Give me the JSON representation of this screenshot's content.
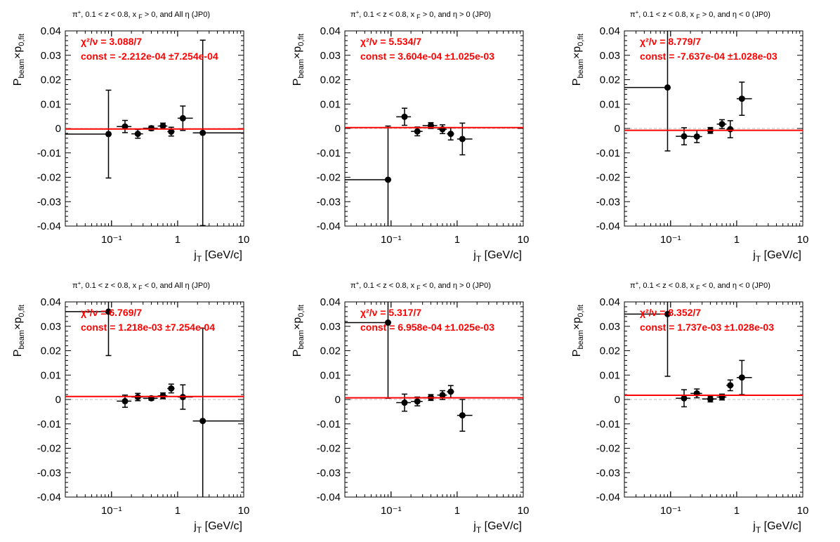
{
  "colors": {
    "fit_line": "#ff0000",
    "points": "#000000",
    "zero_line": "#bbbbbb"
  },
  "chart_data": [
    {
      "type": "scatter",
      "title": "π⁺, 0.1 < z < 0.8, x_F > 0, and All η (JP0)",
      "title_parts": {
        "a": "π",
        "a_sup": "+",
        "b": ", 0.1 < z < 0.8, x",
        "sub": "F",
        "c": " > 0, and All  η (JP0)"
      },
      "xlabel": "j_T [GeV/c]",
      "xlabel_main": "j",
      "xlabel_sub": "T",
      "xlabel_rest": " [GeV/c]",
      "ylabel": "P_beam × p_0,fit",
      "xscale": "log",
      "xlim": [
        0.02,
        10
      ],
      "ylim": [
        -0.04,
        0.04
      ],
      "xticks": [
        "10⁻¹",
        "1",
        "10"
      ],
      "yticks": [
        "-0.04",
        "-0.03",
        "-0.02",
        "-0.01",
        "0",
        "0.01",
        "0.02",
        "0.03",
        "0.04"
      ],
      "fit": {
        "const": -0.0002212
      },
      "chi2_label": "χ²/ν = 3.088/7",
      "const_label": "const = -2.212e-04  ±7.254e-04",
      "points": [
        {
          "x": 0.09,
          "xlo": 0.02,
          "xhi": 0.1,
          "y": -0.0023,
          "yerr": 0.018
        },
        {
          "x": 0.16,
          "xlo": 0.12,
          "xhi": 0.2,
          "y": 0.0008,
          "yerr": 0.0025
        },
        {
          "x": 0.25,
          "xlo": 0.2,
          "xhi": 0.3,
          "y": -0.0022,
          "yerr": 0.0018
        },
        {
          "x": 0.4,
          "xlo": 0.3,
          "xhi": 0.5,
          "y": 0.0001,
          "yerr": 0.0009
        },
        {
          "x": 0.6,
          "xlo": 0.5,
          "xhi": 0.7,
          "y": 0.001,
          "yerr": 0.0012
        },
        {
          "x": 0.8,
          "xlo": 0.7,
          "xhi": 0.9,
          "y": -0.0013,
          "yerr": 0.0018
        },
        {
          "x": 1.2,
          "xlo": 1.0,
          "xhi": 1.7,
          "y": 0.0042,
          "yerr": 0.005
        },
        {
          "x": 2.4,
          "xlo": 1.7,
          "xhi": 10,
          "y": -0.0018,
          "yerr": 0.038
        }
      ]
    },
    {
      "type": "scatter",
      "title": "π⁺, 0.1 < z < 0.8, x_F > 0, and η > 0 (JP0)",
      "title_parts": {
        "a": "π",
        "a_sup": "+",
        "b": ", 0.1 < z < 0.8, x",
        "sub": "F",
        "c": " > 0, and  η > 0 (JP0)"
      },
      "xlabel": "j_T [GeV/c]",
      "xlabel_main": "j",
      "xlabel_sub": "T",
      "xlabel_rest": " [GeV/c]",
      "ylabel": "P_beam × p_0,fit",
      "xscale": "log",
      "xlim": [
        0.02,
        10
      ],
      "ylim": [
        -0.04,
        0.04
      ],
      "xticks": [
        "10⁻¹",
        "1",
        "10"
      ],
      "yticks": [
        "-0.04",
        "-0.03",
        "-0.02",
        "-0.01",
        "0",
        "0.01",
        "0.02",
        "0.03",
        "0.04"
      ],
      "fit": {
        "const": 0.0003604
      },
      "chi2_label": "χ²/ν = 5.534/7",
      "const_label": "const = 3.604e-04  ±1.025e-03",
      "points": [
        {
          "x": 0.09,
          "xlo": 0.02,
          "xhi": 0.1,
          "y": -0.021,
          "yerr": 0.022
        },
        {
          "x": 0.16,
          "xlo": 0.12,
          "xhi": 0.2,
          "y": 0.0048,
          "yerr": 0.0035
        },
        {
          "x": 0.25,
          "xlo": 0.2,
          "xhi": 0.3,
          "y": -0.0012,
          "yerr": 0.0018
        },
        {
          "x": 0.4,
          "xlo": 0.3,
          "xhi": 0.5,
          "y": 0.0012,
          "yerr": 0.0012
        },
        {
          "x": 0.6,
          "xlo": 0.5,
          "xhi": 0.7,
          "y": -0.0003,
          "yerr": 0.0018
        },
        {
          "x": 0.8,
          "xlo": 0.7,
          "xhi": 0.9,
          "y": -0.0022,
          "yerr": 0.0025
        },
        {
          "x": 1.2,
          "xlo": 1.0,
          "xhi": 1.7,
          "y": -0.0043,
          "yerr": 0.0065
        }
      ]
    },
    {
      "type": "scatter",
      "title": "π⁺, 0.1 < z < 0.8, x_F > 0, and η < 0 (JP0)",
      "title_parts": {
        "a": "π",
        "a_sup": "+",
        "b": ", 0.1 < z < 0.8, x",
        "sub": "F",
        "c": " > 0, and  η < 0 (JP0)"
      },
      "xlabel": "j_T [GeV/c]",
      "xlabel_main": "j",
      "xlabel_sub": "T",
      "xlabel_rest": " [GeV/c]",
      "ylabel": "P_beam × p_0,fit",
      "xscale": "log",
      "xlim": [
        0.02,
        10
      ],
      "ylim": [
        -0.04,
        0.04
      ],
      "xticks": [
        "10⁻¹",
        "1",
        "10"
      ],
      "yticks": [
        "-0.04",
        "-0.03",
        "-0.02",
        "-0.01",
        "0",
        "0.01",
        "0.02",
        "0.03",
        "0.04"
      ],
      "fit": {
        "const": -0.0007637
      },
      "chi2_label": "χ²/ν = 8.779/7",
      "const_label": "const = -7.637e-04  ±1.028e-03",
      "points": [
        {
          "x": 0.09,
          "xlo": 0.02,
          "xhi": 0.1,
          "y": 0.0168,
          "yerr": 0.026
        },
        {
          "x": 0.16,
          "xlo": 0.12,
          "xhi": 0.2,
          "y": -0.0032,
          "yerr": 0.0035
        },
        {
          "x": 0.25,
          "xlo": 0.2,
          "xhi": 0.3,
          "y": -0.0033,
          "yerr": 0.0025
        },
        {
          "x": 0.4,
          "xlo": 0.3,
          "xhi": 0.5,
          "y": -0.0008,
          "yerr": 0.0012
        },
        {
          "x": 0.6,
          "xlo": 0.5,
          "xhi": 0.7,
          "y": 0.0018,
          "yerr": 0.0018
        },
        {
          "x": 0.8,
          "xlo": 0.7,
          "xhi": 0.9,
          "y": -0.0003,
          "yerr": 0.0035
        },
        {
          "x": 1.2,
          "xlo": 1.0,
          "xhi": 1.7,
          "y": 0.0122,
          "yerr": 0.0068
        }
      ]
    },
    {
      "type": "scatter",
      "title": "π⁺, 0.1 < z < 0.8, x_F < 0, and All η (JP0)",
      "title_parts": {
        "a": "π",
        "a_sup": "+",
        "b": ", 0.1 < z < 0.8, x",
        "sub": "F",
        "c": " < 0, and All  η (JP0)"
      },
      "xlabel": "j_T [GeV/c]",
      "xlabel_main": "j",
      "xlabel_sub": "T",
      "xlabel_rest": " [GeV/c]",
      "ylabel": "P_beam × p_0,fit",
      "xscale": "log",
      "xlim": [
        0.02,
        10
      ],
      "ylim": [
        -0.04,
        0.04
      ],
      "xticks": [
        "10⁻¹",
        "1",
        "10"
      ],
      "yticks": [
        "-0.04",
        "-0.03",
        "-0.02",
        "-0.01",
        "0",
        "0.01",
        "0.02",
        "0.03",
        "0.04"
      ],
      "fit": {
        "const": 0.001218
      },
      "chi2_label": "χ²/ν = 6.769/7",
      "const_label": "const = 1.218e-03  ±7.254e-04",
      "points": [
        {
          "x": 0.09,
          "xlo": 0.02,
          "xhi": 0.1,
          "y": 0.036,
          "yerr": 0.018
        },
        {
          "x": 0.16,
          "xlo": 0.12,
          "xhi": 0.2,
          "y": -0.0007,
          "yerr": 0.0025
        },
        {
          "x": 0.25,
          "xlo": 0.2,
          "xhi": 0.3,
          "y": 0.001,
          "yerr": 0.0015
        },
        {
          "x": 0.4,
          "xlo": 0.3,
          "xhi": 0.5,
          "y": 0.0005,
          "yerr": 0.0008
        },
        {
          "x": 0.6,
          "xlo": 0.5,
          "xhi": 0.7,
          "y": 0.0015,
          "yerr": 0.0012
        },
        {
          "x": 0.8,
          "xlo": 0.7,
          "xhi": 0.9,
          "y": 0.0045,
          "yerr": 0.0018
        },
        {
          "x": 1.2,
          "xlo": 1.0,
          "xhi": 1.7,
          "y": 0.001,
          "yerr": 0.005
        },
        {
          "x": 2.4,
          "xlo": 1.7,
          "xhi": 10,
          "y": -0.0088,
          "yerr": 0.038
        }
      ]
    },
    {
      "type": "scatter",
      "title": "π⁺, 0.1 < z < 0.8, x_F < 0, and η > 0 (JP0)",
      "title_parts": {
        "a": "π",
        "a_sup": "+",
        "b": ", 0.1 < z < 0.8, x",
        "sub": "F",
        "c": " < 0, and  η > 0 (JP0)"
      },
      "xlabel": "j_T [GeV/c]",
      "xlabel_main": "j",
      "xlabel_sub": "T",
      "xlabel_rest": " [GeV/c]",
      "ylabel": "P_beam × p_0,fit",
      "xscale": "log",
      "xlim": [
        0.02,
        10
      ],
      "ylim": [
        -0.04,
        0.04
      ],
      "xticks": [
        "10⁻¹",
        "1",
        "10"
      ],
      "yticks": [
        "-0.04",
        "-0.03",
        "-0.02",
        "-0.01",
        "0",
        "0.01",
        "0.02",
        "0.03",
        "0.04"
      ],
      "fit": {
        "const": 0.0006958
      },
      "chi2_label": "χ²/ν = 5.317/7",
      "const_label": "const = 6.958e-04  ±1.025e-03",
      "points": [
        {
          "x": 0.09,
          "xlo": 0.02,
          "xhi": 0.1,
          "y": 0.0315,
          "yerr": 0.031
        },
        {
          "x": 0.16,
          "xlo": 0.12,
          "xhi": 0.2,
          "y": -0.0013,
          "yerr": 0.0035
        },
        {
          "x": 0.25,
          "xlo": 0.2,
          "xhi": 0.3,
          "y": -0.0008,
          "yerr": 0.0018
        },
        {
          "x": 0.4,
          "xlo": 0.3,
          "xhi": 0.5,
          "y": 0.0008,
          "yerr": 0.0012
        },
        {
          "x": 0.6,
          "xlo": 0.5,
          "xhi": 0.7,
          "y": 0.0018,
          "yerr": 0.0018
        },
        {
          "x": 0.8,
          "xlo": 0.7,
          "xhi": 0.9,
          "y": 0.0032,
          "yerr": 0.0025
        },
        {
          "x": 1.2,
          "xlo": 1.0,
          "xhi": 1.7,
          "y": -0.0065,
          "yerr": 0.0065
        }
      ]
    },
    {
      "type": "scatter",
      "title": "π⁺, 0.1 < z < 0.8, x_F < 0, and η < 0 (JP0)",
      "title_parts": {
        "a": "π",
        "a_sup": "+",
        "b": ", 0.1 < z < 0.8, x",
        "sub": "F",
        "c": " < 0, and  η < 0 (JP0)"
      },
      "xlabel": "j_T [GeV/c]",
      "xlabel_main": "j",
      "xlabel_sub": "T",
      "xlabel_rest": " [GeV/c]",
      "ylabel": "P_beam × p_0,fit",
      "xscale": "log",
      "xlim": [
        0.02,
        10
      ],
      "ylim": [
        -0.04,
        0.04
      ],
      "xticks": [
        "10⁻¹",
        "1",
        "10"
      ],
      "yticks": [
        "-0.04",
        "-0.03",
        "-0.02",
        "-0.01",
        "0",
        "0.01",
        "0.02",
        "0.03",
        "0.04"
      ],
      "fit": {
        "const": 0.001737
      },
      "chi2_label": "χ²/ν = 8.352/7",
      "const_label": "const = 1.737e-03  ±1.028e-03",
      "points": [
        {
          "x": 0.09,
          "xlo": 0.02,
          "xhi": 0.1,
          "y": 0.035,
          "yerr": 0.0255
        },
        {
          "x": 0.16,
          "xlo": 0.12,
          "xhi": 0.2,
          "y": 0.0005,
          "yerr": 0.0035
        },
        {
          "x": 0.25,
          "xlo": 0.2,
          "xhi": 0.3,
          "y": 0.0025,
          "yerr": 0.0018
        },
        {
          "x": 0.4,
          "xlo": 0.3,
          "xhi": 0.5,
          "y": 0.0002,
          "yerr": 0.0012
        },
        {
          "x": 0.6,
          "xlo": 0.5,
          "xhi": 0.7,
          "y": 0.001,
          "yerr": 0.0012
        },
        {
          "x": 0.8,
          "xlo": 0.7,
          "xhi": 0.9,
          "y": 0.0058,
          "yerr": 0.0022
        },
        {
          "x": 1.2,
          "xlo": 1.0,
          "xhi": 1.7,
          "y": 0.009,
          "yerr": 0.007
        }
      ]
    }
  ]
}
